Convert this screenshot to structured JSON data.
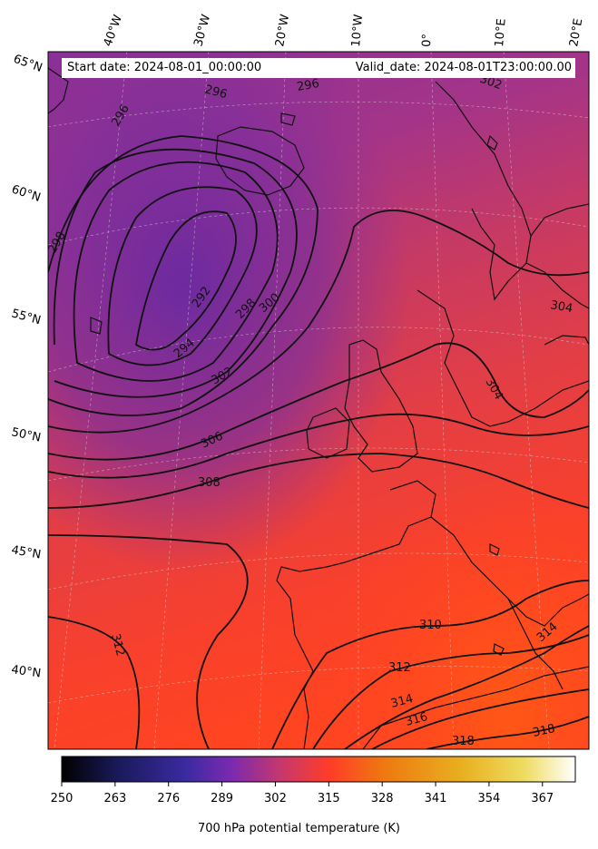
{
  "annotation": {
    "start_date": "Start date: 2024-08-01_00:00:00",
    "valid_date": "Valid_date: 2024-08-01T23:00:00.00"
  },
  "map": {
    "projection": "polar-stereographic",
    "background": "700 hPa potential temperature shaded field",
    "coastline_color": "#000000",
    "graticule_color": "#c8c8c8"
  },
  "longitude_labels": [
    "40°W",
    "30°W",
    "20°W",
    "10°W",
    "0°",
    "10°E",
    "20°E"
  ],
  "latitude_labels": [
    "65°N",
    "60°N",
    "55°N",
    "50°N",
    "45°N",
    "40°N"
  ],
  "contour_labels": [
    "296",
    "296",
    "296",
    "298",
    "292",
    "294",
    "298",
    "300",
    "302",
    "302",
    "304",
    "304",
    "306",
    "308",
    "310",
    "312",
    "312",
    "314",
    "314",
    "316",
    "318",
    "318"
  ],
  "colorbar": {
    "title": "700 hPa potential temperature (K)",
    "ticks": [
      "250",
      "263",
      "276",
      "289",
      "302",
      "315",
      "328",
      "341",
      "354",
      "367"
    ],
    "range": [
      250,
      375
    ],
    "colormap": "CMRmap",
    "stops": [
      "#000000",
      "#1a1a5a",
      "#3a2aa0",
      "#7a2ab0",
      "#c8386a",
      "#ff3c28",
      "#ee7a10",
      "#e8b020",
      "#eedc60",
      "#ffffff"
    ]
  }
}
